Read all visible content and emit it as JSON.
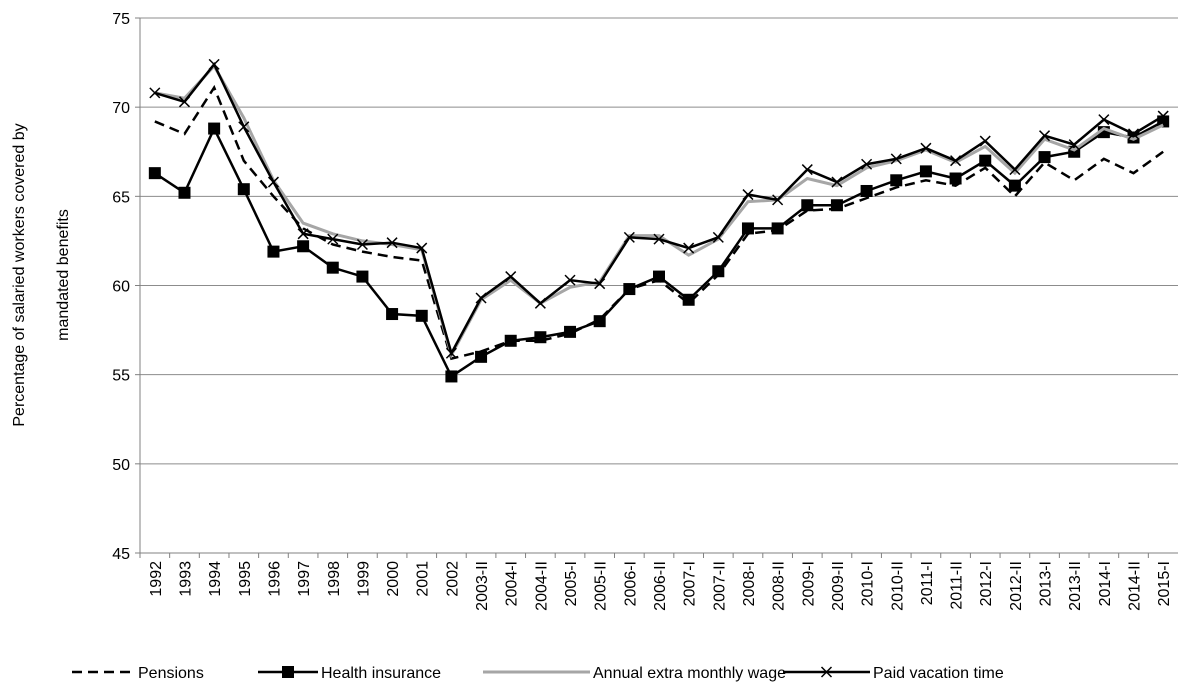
{
  "chart_data": {
    "type": "line",
    "ylabel": [
      "Percentage of salaried workers covered by",
      "mandated benefits"
    ],
    "categories": [
      "1992",
      "1993",
      "1994",
      "1995",
      "1996",
      "1997",
      "1998",
      "1999",
      "2000",
      "2001",
      "2002",
      "2003-II",
      "2004-I",
      "2004-II",
      "2005-I",
      "2005-II",
      "2006-I",
      "2006-II",
      "2007-I",
      "2007-II",
      "2008-I",
      "2008-II",
      "2009-I",
      "2009-II",
      "2010-I",
      "2010-II",
      "2011-I",
      "2011-II",
      "2012-I",
      "2012-II",
      "2013-I",
      "2013-II",
      "2014-I",
      "2014-II",
      "2015-I"
    ],
    "ylim": [
      45,
      75
    ],
    "yticks": [
      45,
      50,
      55,
      60,
      65,
      70,
      75
    ],
    "grid": true,
    "legend": "bottom",
    "series": [
      {
        "name": "Pensions",
        "color": "#000000",
        "dash": true,
        "marker": "none",
        "values": [
          69.2,
          68.5,
          71.1,
          67.0,
          65.0,
          63.2,
          62.3,
          61.9,
          61.6,
          61.4,
          55.9,
          56.3,
          56.9,
          56.9,
          57.3,
          58.1,
          59.8,
          60.3,
          59.0,
          60.6,
          62.9,
          63.1,
          64.2,
          64.3,
          64.9,
          65.5,
          65.9,
          65.6,
          66.6,
          65.0,
          66.9,
          65.9,
          67.1,
          66.3,
          67.5
        ]
      },
      {
        "name": "Health insurance",
        "color": "#000000",
        "dash": false,
        "marker": "square",
        "values": [
          66.3,
          65.2,
          68.8,
          65.4,
          61.9,
          62.2,
          61.0,
          60.5,
          58.4,
          58.3,
          54.9,
          56.0,
          56.9,
          57.1,
          57.4,
          58.0,
          59.8,
          60.5,
          59.2,
          60.8,
          63.2,
          63.2,
          64.5,
          64.5,
          65.3,
          65.9,
          66.4,
          66.0,
          67.0,
          65.6,
          67.2,
          67.5,
          68.6,
          68.3,
          69.2
        ]
      },
      {
        "name": "Annual extra monthly wage",
        "color": "#a6a6a6",
        "dash": false,
        "marker": "none",
        "values": [
          70.8,
          70.5,
          72.3,
          69.4,
          65.9,
          63.5,
          62.9,
          62.5,
          62.3,
          62.0,
          56.1,
          59.2,
          60.3,
          59.0,
          59.9,
          60.2,
          62.8,
          62.8,
          61.7,
          62.6,
          64.7,
          64.8,
          66.0,
          65.6,
          66.6,
          67.0,
          67.6,
          66.9,
          67.8,
          66.3,
          68.2,
          67.6,
          68.8,
          68.2,
          69.0
        ]
      },
      {
        "name": "Paid vacation time",
        "color": "#000000",
        "dash": false,
        "marker": "x",
        "values": [
          70.8,
          70.3,
          72.4,
          68.9,
          65.8,
          62.9,
          62.6,
          62.3,
          62.4,
          62.1,
          56.2,
          59.3,
          60.5,
          59.0,
          60.3,
          60.1,
          62.7,
          62.6,
          62.1,
          62.7,
          65.1,
          64.8,
          66.5,
          65.8,
          66.8,
          67.1,
          67.7,
          67.0,
          68.1,
          66.5,
          68.4,
          67.9,
          69.3,
          68.5,
          69.5
        ]
      }
    ]
  }
}
